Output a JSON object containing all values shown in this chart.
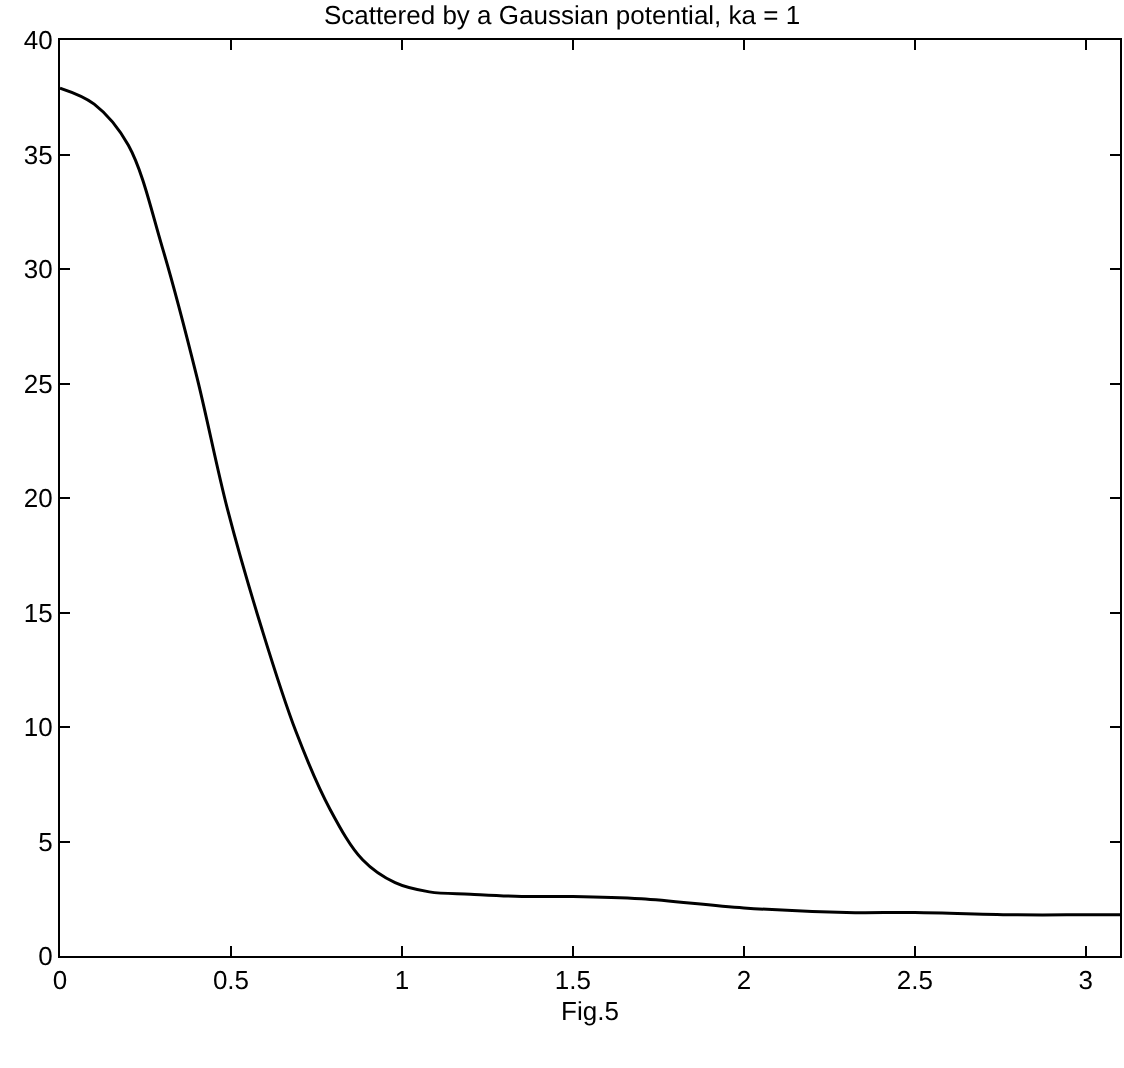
{
  "chart_data": {
    "type": "line",
    "title": "Scattered by a Gaussian potential, ka = 1",
    "xlabel": "Fig.5",
    "x": [
      0,
      0.1,
      0.2,
      0.3,
      0.4,
      0.49,
      0.59,
      0.69,
      0.79,
      0.885,
      0.98,
      1.08,
      1.2,
      1.35,
      1.5,
      1.7,
      2,
      2.3,
      2.5,
      2.8,
      3,
      3.1
    ],
    "series": [
      {
        "color": "#000000",
        "values": [
          37.9,
          37.2,
          35.4,
          30.9,
          25.3,
          19.5,
          14.3,
          9.8,
          6.4,
          4.2,
          3.2,
          2.8,
          2.7,
          2.6,
          2.6,
          2.5,
          2.1,
          1.9,
          1.9,
          1.8,
          1.8,
          1.8
        ]
      }
    ],
    "xlim": [
      0,
      3.1
    ],
    "xticks": [
      0,
      0.5,
      1,
      1.5,
      2,
      2.5,
      3
    ],
    "ylim": [
      0,
      40
    ],
    "yticks": [
      0,
      5,
      10,
      15,
      20,
      25,
      30,
      35,
      40
    ],
    "marker": "none",
    "line_style": "solid"
  }
}
